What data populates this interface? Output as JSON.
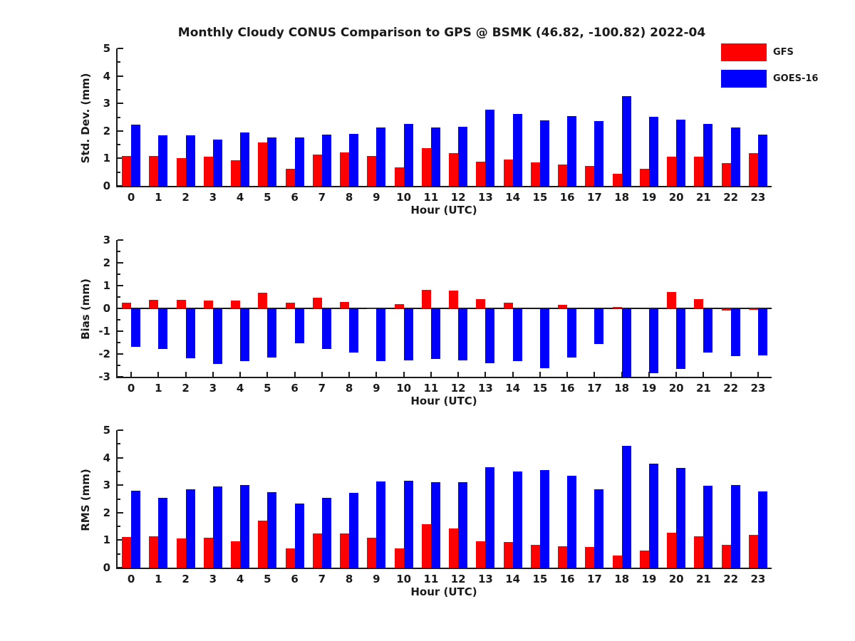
{
  "title": "Monthly Cloudy CONUS Comparison to GPS @ BSMK (46.82, -100.82) 2022-04",
  "colors": {
    "gfs": "#ff0000",
    "goes16": "#0000ff",
    "axis": "#1a1a1a"
  },
  "legend": [
    {
      "label": "GFS",
      "color": "#ff0000"
    },
    {
      "label": "GOES-16",
      "color": "#0000ff"
    }
  ],
  "chart_data": [
    {
      "type": "bar",
      "title": "",
      "ylabel": "Std. Dev. (mm)",
      "xlabel": "Hour (UTC)",
      "ylim": [
        0,
        5
      ],
      "yticks": [
        0,
        1,
        2,
        3,
        4,
        5
      ],
      "grid": false,
      "legend_position": "upper-right-outside",
      "categories": [
        "0",
        "1",
        "2",
        "3",
        "4",
        "5",
        "6",
        "7",
        "8",
        "9",
        "10",
        "11",
        "12",
        "13",
        "14",
        "15",
        "16",
        "17",
        "18",
        "19",
        "20",
        "21",
        "22",
        "23"
      ],
      "series": [
        {
          "name": "GFS",
          "color": "#ff0000",
          "values": [
            1.1,
            1.08,
            1.02,
            1.05,
            0.92,
            1.58,
            0.63,
            1.15,
            1.22,
            1.1,
            0.68,
            1.38,
            1.18,
            0.88,
            0.95,
            0.85,
            0.78,
            0.73,
            0.45,
            0.63,
            1.05,
            1.07,
            0.82,
            1.2
          ]
        },
        {
          "name": "GOES-16",
          "color": "#0000ff",
          "values": [
            2.22,
            1.85,
            1.85,
            1.68,
            1.95,
            1.75,
            1.77,
            1.87,
            1.9,
            2.12,
            2.26,
            2.12,
            2.15,
            2.77,
            2.62,
            2.38,
            2.53,
            2.36,
            3.26,
            2.51,
            2.41,
            2.26,
            2.12,
            1.86
          ]
        }
      ]
    },
    {
      "type": "bar",
      "title": "",
      "ylabel": "Bias (mm)",
      "xlabel": "Hour (UTC)",
      "ylim": [
        -3,
        3
      ],
      "yticks": [
        -3,
        -2,
        -1,
        0,
        1,
        2,
        3
      ],
      "grid": false,
      "categories": [
        "0",
        "1",
        "2",
        "3",
        "4",
        "5",
        "6",
        "7",
        "8",
        "9",
        "10",
        "11",
        "12",
        "13",
        "14",
        "15",
        "16",
        "17",
        "18",
        "19",
        "20",
        "21",
        "22",
        "23"
      ],
      "series": [
        {
          "name": "GFS",
          "color": "#ff0000",
          "values": [
            0.25,
            0.38,
            0.38,
            0.35,
            0.35,
            0.7,
            0.25,
            0.47,
            0.28,
            -0.04,
            0.18,
            0.82,
            0.78,
            0.42,
            0.24,
            0.0,
            0.17,
            0.0,
            0.05,
            0.0,
            0.72,
            0.42,
            -0.08,
            -0.06
          ]
        },
        {
          "name": "GOES-16",
          "color": "#0000ff",
          "values": [
            -1.7,
            -1.78,
            -2.2,
            -2.45,
            -2.32,
            -2.15,
            -1.52,
            -1.78,
            -1.95,
            -2.32,
            -2.27,
            -2.22,
            -2.27,
            -2.4,
            -2.32,
            -2.64,
            -2.15,
            -1.57,
            -3.0,
            -2.85,
            -2.66,
            -1.95,
            -2.09,
            -2.05
          ]
        }
      ]
    },
    {
      "type": "bar",
      "title": "",
      "ylabel": "RMS (mm)",
      "xlabel": "Hour (UTC)",
      "ylim": [
        0,
        5
      ],
      "yticks": [
        0,
        1,
        2,
        3,
        4,
        5
      ],
      "grid": false,
      "categories": [
        "0",
        "1",
        "2",
        "3",
        "4",
        "5",
        "6",
        "7",
        "8",
        "9",
        "10",
        "11",
        "12",
        "13",
        "14",
        "15",
        "16",
        "17",
        "18",
        "19",
        "20",
        "21",
        "22",
        "23"
      ],
      "series": [
        {
          "name": "GFS",
          "color": "#ff0000",
          "values": [
            1.12,
            1.15,
            1.06,
            1.1,
            0.95,
            1.72,
            0.7,
            1.25,
            1.25,
            1.1,
            0.7,
            1.58,
            1.43,
            0.97,
            0.94,
            0.82,
            0.78,
            0.75,
            0.43,
            0.62,
            1.27,
            1.13,
            0.84,
            1.2
          ]
        },
        {
          "name": "GOES-16",
          "color": "#0000ff",
          "values": [
            2.8,
            2.54,
            2.84,
            2.95,
            3.0,
            2.74,
            2.33,
            2.54,
            2.72,
            3.13,
            3.15,
            3.1,
            3.1,
            3.65,
            3.5,
            3.55,
            3.33,
            2.85,
            4.43,
            3.78,
            3.62,
            2.97,
            3.0,
            2.77
          ]
        }
      ]
    }
  ]
}
